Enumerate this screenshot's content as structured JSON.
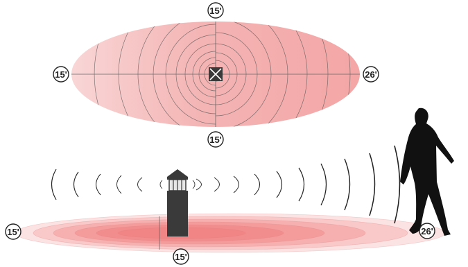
{
  "top_view": {
    "label_top": "15'",
    "label_left": "15'",
    "label_right": "26'",
    "label_bottom": "15'"
  },
  "side_view": {
    "label_left": "15'",
    "label_bottom": "15'",
    "label_right": "26'"
  },
  "colors": {
    "heat": "#f08080",
    "ring_line": "#555555",
    "arc_line": "#222222",
    "fixture": "#3a3a3a",
    "silhouette": "#111111"
  },
  "icons": {
    "sensor": "sensor-x-icon",
    "fixture": "bollard-light-icon",
    "person": "walking-person-icon"
  }
}
